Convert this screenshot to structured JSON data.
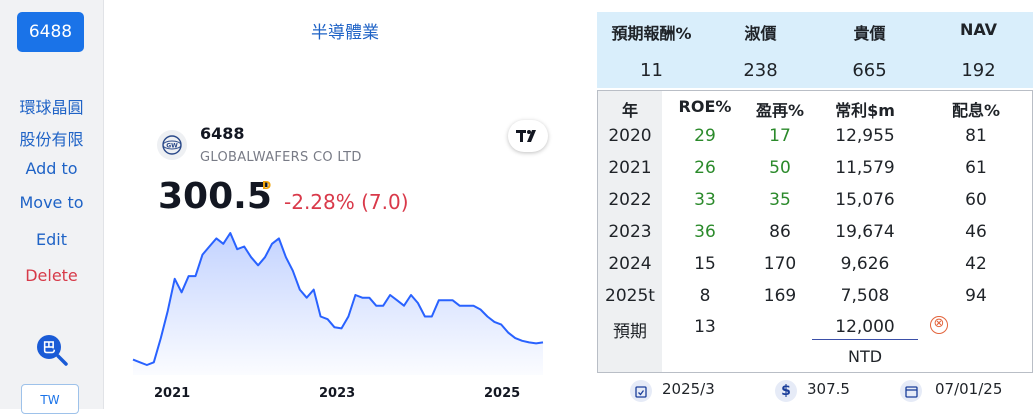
{
  "sidebar": {
    "code": "6488",
    "name_line1": "環球晶圓",
    "name_line2": "股份有限",
    "add_to": "Add to",
    "move_to": "Move to",
    "edit": "Edit",
    "delete": "Delete",
    "market": "TW"
  },
  "chart_panel": {
    "industry": "半導體業",
    "symbol": "6488",
    "company": "GLOBALWAFERS CO LTD",
    "price": "300.5",
    "price_suffix": "D",
    "change": "-2.28% (7.0)",
    "tv_logo": "TV"
  },
  "chart_data": {
    "type": "area",
    "x_ticks": [
      "2021",
      "2023",
      "2025"
    ],
    "line_color": "#2962ff",
    "series": [
      {
        "values": [
          190,
          185,
          180,
          185,
          230,
          280,
          340,
          315,
          345,
          345,
          385,
          400,
          415,
          405,
          425,
          395,
          400,
          380,
          365,
          380,
          405,
          415,
          380,
          355,
          320,
          305,
          320,
          270,
          265,
          250,
          248,
          270,
          310,
          305,
          305,
          290,
          290,
          310,
          300,
          290,
          310,
          295,
          270,
          270,
          300,
          300,
          300,
          290,
          290,
          290,
          283,
          270,
          260,
          255,
          240,
          230,
          225,
          222,
          220,
          222
        ]
      }
    ]
  },
  "valuation": {
    "headers": [
      "預期報酬%",
      "淑價",
      "貴價",
      "NAV"
    ],
    "values": [
      "11",
      "238",
      "665",
      "192"
    ]
  },
  "history": {
    "headers": [
      "年",
      "ROE%",
      "盈再%",
      "常利$m",
      "配息%"
    ],
    "rows": [
      {
        "year": "2020",
        "roe": "29",
        "reinvest": "17",
        "profit": "12,955",
        "payout": "81",
        "roe_green": true,
        "re_green": true
      },
      {
        "year": "2021",
        "roe": "26",
        "reinvest": "50",
        "profit": "11,579",
        "payout": "61",
        "roe_green": true,
        "re_green": true
      },
      {
        "year": "2022",
        "roe": "33",
        "reinvest": "35",
        "profit": "15,076",
        "payout": "60",
        "roe_green": true,
        "re_green": true
      },
      {
        "year": "2023",
        "roe": "36",
        "reinvest": "86",
        "profit": "19,674",
        "payout": "46",
        "roe_green": true,
        "re_green": false
      },
      {
        "year": "2024",
        "roe": "15",
        "reinvest": "170",
        "profit": "9,626",
        "payout": "42",
        "roe_green": false,
        "re_green": false
      },
      {
        "year": "2025t",
        "roe": "8",
        "reinvest": "169",
        "profit": "7,508",
        "payout": "94",
        "roe_green": false,
        "re_green": false
      }
    ],
    "expected_label": "預期",
    "expected_roe": "13",
    "expected_profit": "12,000",
    "clear_icon": "⊗",
    "currency": "NTD"
  },
  "footer": {
    "period": "2025/3",
    "price_label": "$",
    "price": "307.5",
    "date": "07/01/25"
  },
  "colors": {
    "accent": "#1a73e8",
    "green": "#2b8a2b",
    "red": "#d9394a",
    "panel_blue": "#d9eefb"
  }
}
